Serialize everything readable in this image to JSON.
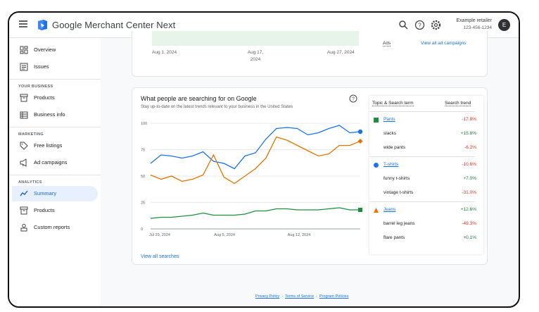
{
  "header": {
    "app_title": "Google Merchant Center Next",
    "account_name": "Example retailer",
    "account_id": "123-456-1234",
    "avatar_letter": "E"
  },
  "sidebar": {
    "items_top": [
      {
        "label": "Overview",
        "icon": "dashboard-icon"
      },
      {
        "label": "Issues",
        "icon": "issues-icon"
      }
    ],
    "your_business": {
      "title": "YOUR BUSINESS",
      "items": [
        {
          "label": "Products",
          "icon": "archive-box-icon"
        },
        {
          "label": "Business info",
          "icon": "storefront-icon"
        }
      ]
    },
    "marketing": {
      "title": "MARKETING",
      "items": [
        {
          "label": "Free listings",
          "icon": "tag-icon"
        },
        {
          "label": "Ad campaigns",
          "icon": "megaphone-icon"
        }
      ]
    },
    "analytics": {
      "title": "ANALYTICS",
      "items": [
        {
          "label": "Summary",
          "icon": "trend-line-icon",
          "active": true
        },
        {
          "label": "Products",
          "icon": "archive-box-icon"
        },
        {
          "label": "Custom reports",
          "icon": "person-report-icon"
        }
      ]
    }
  },
  "top_card": {
    "x_ticks": [
      "Aug 1, 2024",
      "Aug 17, 2024",
      "Aug 27, 2024"
    ],
    "ads_label": "Ads",
    "view_campaigns": "View all ad campaigns"
  },
  "search_card": {
    "title": "What people are searching for on Google",
    "subtitle": "Stay up-to-date on the latest trends relevant to your business in the United States",
    "view_all": "View all searches",
    "panel_headers": {
      "topic": "Topic & Search term",
      "trend": "Search trend"
    },
    "groups": [
      {
        "name": "Pants",
        "change": "-17.8%",
        "color": "#1e8e3e",
        "marker": "square",
        "terms": [
          {
            "term": "slacks",
            "change": "+15.8%"
          },
          {
            "term": "wide pants",
            "change": "-6.2%"
          }
        ]
      },
      {
        "name": "T-shirts",
        "change": "-10.6%",
        "color": "#1a73e8",
        "marker": "circle",
        "terms": [
          {
            "term": "funny t-shirts",
            "change": "+7.0%"
          },
          {
            "term": "vintage t-shirts",
            "change": "-31.0%"
          }
        ]
      },
      {
        "name": "Jeans",
        "change": "+12.6%",
        "color": "#e37400",
        "marker": "triangle",
        "terms": [
          {
            "term": "barrel leg jeans",
            "change": "-49.3%"
          },
          {
            "term": "flare pants",
            "change": "+0.1%"
          }
        ]
      }
    ]
  },
  "chart_data": {
    "type": "line",
    "xlabel": "",
    "ylabel": "",
    "ylim": [
      0,
      100
    ],
    "y_ticks": [
      0,
      25,
      50,
      75,
      100
    ],
    "x_ticks": [
      "Jul 29, 2024",
      "Aug 5, 2024",
      "Aug 12, 2024"
    ],
    "x": [
      "Jul 29",
      "Jul 30",
      "Jul 31",
      "Aug 1",
      "Aug 2",
      "Aug 3",
      "Aug 4",
      "Aug 5",
      "Aug 6",
      "Aug 7",
      "Aug 8",
      "Aug 9",
      "Aug 10",
      "Aug 11",
      "Aug 12",
      "Aug 13",
      "Aug 14",
      "Aug 15",
      "Aug 16",
      "Aug 17",
      "Aug 18"
    ],
    "grid": true,
    "series": [
      {
        "name": "T-shirts",
        "color": "#1a73e8",
        "values": [
          62,
          70,
          69,
          67,
          69,
          73,
          64,
          62,
          57,
          69,
          72,
          85,
          95,
          96,
          95,
          89,
          91,
          95,
          98,
          91,
          92
        ]
      },
      {
        "name": "Jeans",
        "color": "#e37400",
        "values": [
          51,
          47,
          50,
          45,
          47,
          51,
          70,
          49,
          43,
          50,
          57,
          67,
          87,
          84,
          79,
          74,
          69,
          71,
          79,
          79,
          83
        ]
      },
      {
        "name": "Pants",
        "color": "#1e8e3e",
        "values": [
          10,
          11,
          11,
          12,
          13,
          15,
          13,
          13,
          13,
          14,
          17,
          17,
          19,
          19,
          18,
          18,
          18,
          19,
          20,
          18,
          18
        ]
      }
    ]
  },
  "footer": {
    "privacy": "Privacy Policy",
    "terms": "Terms of Service",
    "program": "Program Policies"
  }
}
